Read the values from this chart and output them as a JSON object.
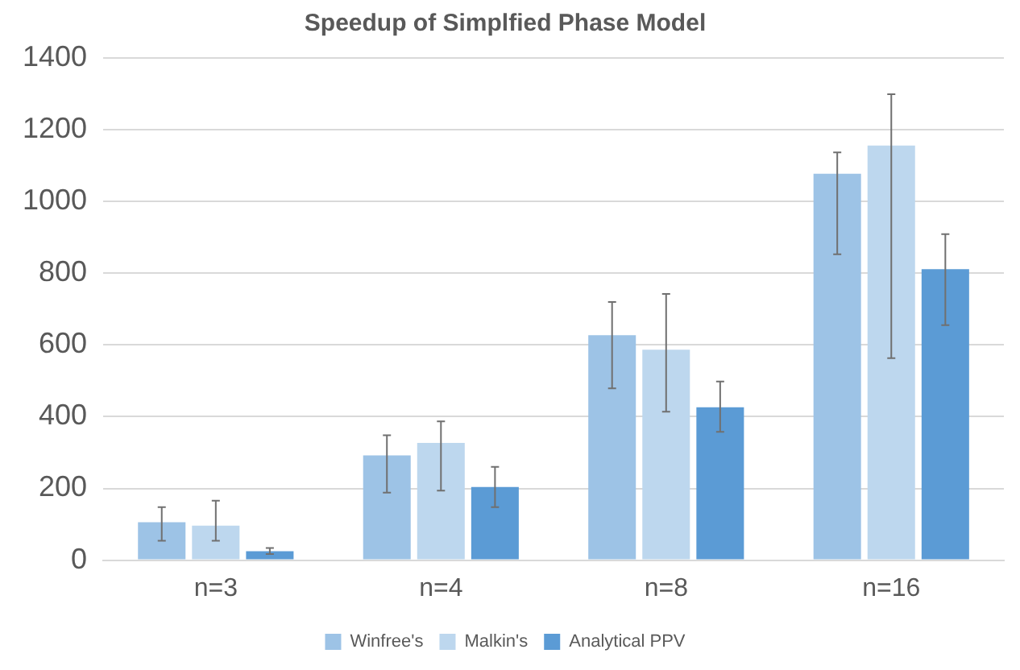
{
  "chart_data": {
    "type": "bar",
    "title": "Speedup of Simplfied Phase Model",
    "categories": [
      "n=3",
      "n=4",
      "n=8",
      "n=16"
    ],
    "series": [
      {
        "name": "Winfree's",
        "color": "#9dc3e6",
        "values": [
          106,
          292,
          627,
          1077
        ],
        "errors": [
          [
            54,
            148
          ],
          [
            188,
            348
          ],
          [
            479,
            720
          ],
          [
            853,
            1137
          ]
        ]
      },
      {
        "name": "Malkin's",
        "color": "#bdd7ee",
        "values": [
          96,
          327,
          587,
          1156
        ],
        "errors": [
          [
            54,
            166
          ],
          [
            194,
            387
          ],
          [
            414,
            742
          ],
          [
            563,
            1299
          ]
        ]
      },
      {
        "name": "Analytical PPV",
        "color": "#5b9bd5",
        "values": [
          25,
          204,
          426,
          811
        ],
        "errors": [
          [
            17,
            34
          ],
          [
            148,
            260
          ],
          [
            358,
            498
          ],
          [
            655,
            909
          ]
        ]
      }
    ],
    "ylim": [
      0,
      1400
    ],
    "yticks": [
      0,
      200,
      400,
      600,
      800,
      1000,
      1200,
      1400
    ],
    "grid": "y",
    "legend": "bottom"
  }
}
